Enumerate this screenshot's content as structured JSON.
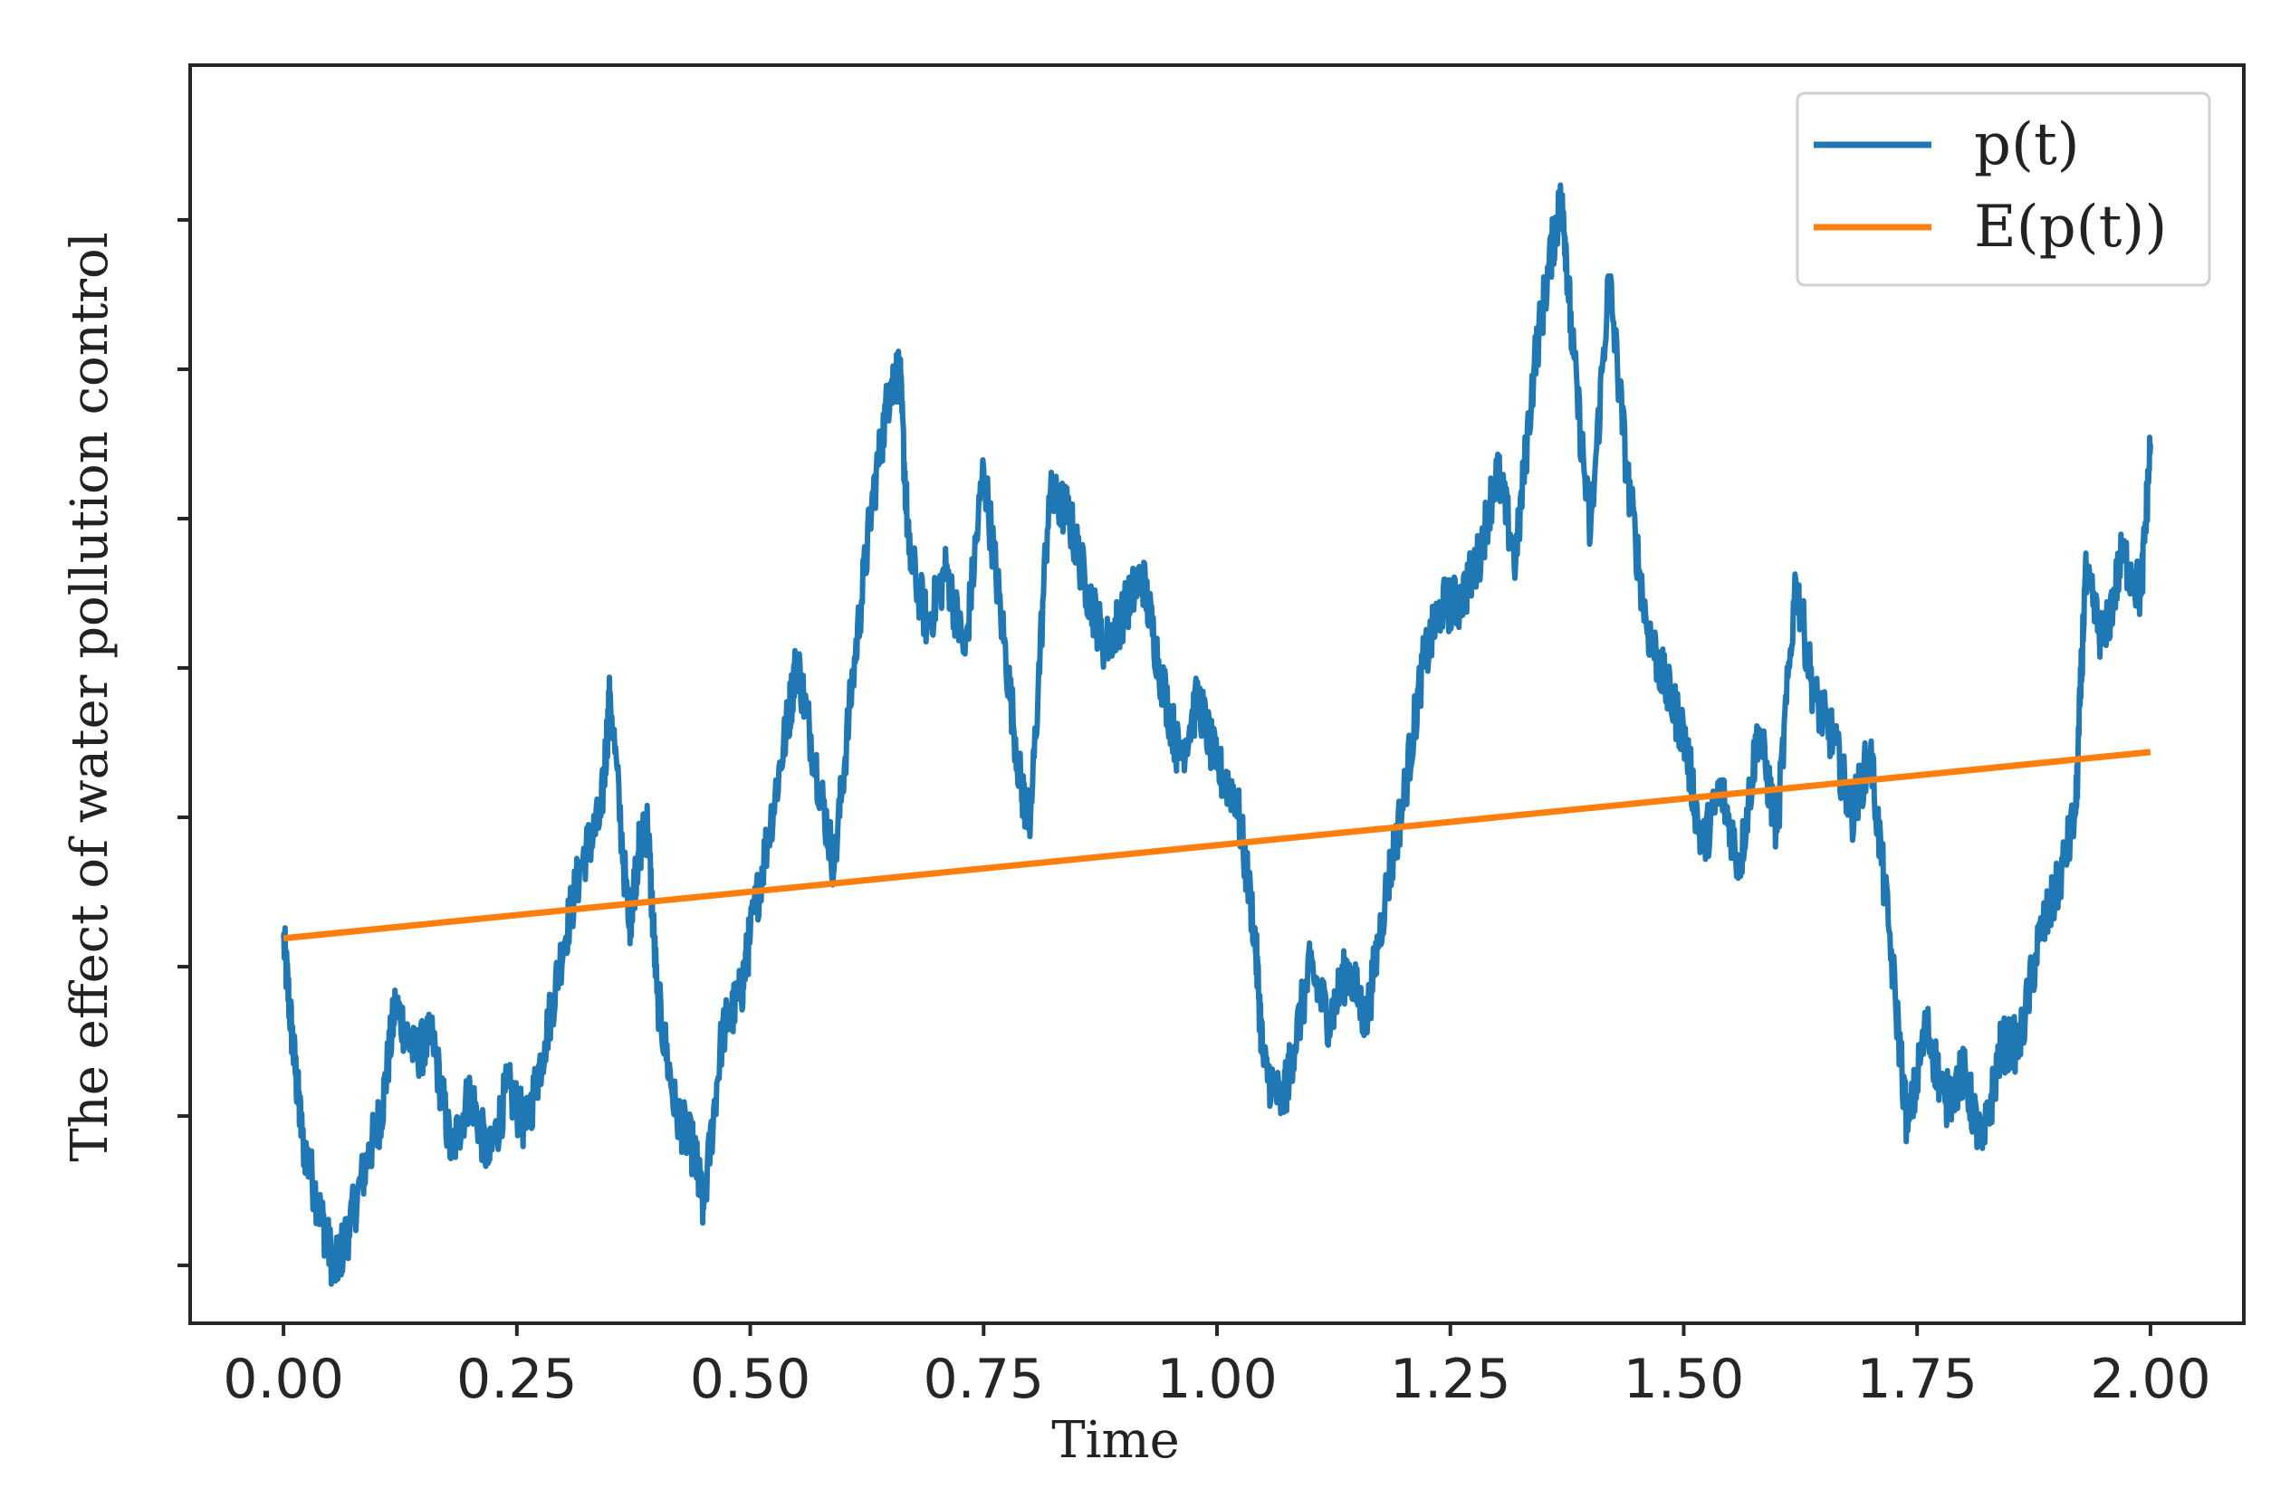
{
  "chart_data": {
    "type": "line",
    "title": "",
    "xlabel": "Time",
    "ylabel": "The effect  of water pollution control",
    "xlim": [
      -0.1,
      2.1
    ],
    "ylim": [
      0,
      1
    ],
    "x_ticks": [
      "0.00",
      "0.25",
      "0.50",
      "0.75",
      "1.00",
      "1.25",
      "1.50",
      "1.75",
      "2.00"
    ],
    "y_ticks_count": 8,
    "y_tick_labels_visible": false,
    "grid": false,
    "legend": {
      "placement": "top-right",
      "entries": [
        "p(t)",
        "E(p(t))"
      ]
    },
    "series": [
      {
        "name": "p(t)",
        "color": "#1f77b4",
        "style": "noisy-path",
        "x": [
          0.0,
          0.01,
          0.02,
          0.04,
          0.055,
          0.07,
          0.09,
          0.105,
          0.12,
          0.14,
          0.16,
          0.18,
          0.2,
          0.22,
          0.24,
          0.26,
          0.28,
          0.3,
          0.32,
          0.34,
          0.35,
          0.37,
          0.38,
          0.39,
          0.4,
          0.42,
          0.44,
          0.45,
          0.47,
          0.49,
          0.5,
          0.52,
          0.54,
          0.55,
          0.57,
          0.59,
          0.61,
          0.63,
          0.65,
          0.66,
          0.67,
          0.69,
          0.71,
          0.73,
          0.75,
          0.77,
          0.79,
          0.8,
          0.82,
          0.84,
          0.86,
          0.88,
          0.9,
          0.92,
          0.94,
          0.96,
          0.98,
          1.0,
          1.02,
          1.04,
          1.05,
          1.07,
          1.08,
          1.1,
          1.12,
          1.14,
          1.16,
          1.18,
          1.2,
          1.22,
          1.24,
          1.26,
          1.28,
          1.3,
          1.32,
          1.34,
          1.36,
          1.37,
          1.38,
          1.4,
          1.42,
          1.44,
          1.46,
          1.48,
          1.5,
          1.52,
          1.54,
          1.56,
          1.58,
          1.6,
          1.62,
          1.64,
          1.66,
          1.68,
          1.7,
          1.72,
          1.74,
          1.76,
          1.78,
          1.8,
          1.82,
          1.84,
          1.86,
          1.88,
          1.9,
          1.92,
          1.93,
          1.95,
          1.97,
          1.99,
          2.0
        ],
        "y": [
          0.306,
          0.222,
          0.148,
          0.086,
          0.042,
          0.075,
          0.131,
          0.168,
          0.254,
          0.214,
          0.226,
          0.135,
          0.185,
          0.129,
          0.188,
          0.155,
          0.223,
          0.302,
          0.368,
          0.403,
          0.501,
          0.315,
          0.374,
          0.397,
          0.263,
          0.169,
          0.136,
          0.091,
          0.231,
          0.262,
          0.308,
          0.391,
          0.478,
          0.527,
          0.445,
          0.363,
          0.514,
          0.649,
          0.747,
          0.756,
          0.612,
          0.555,
          0.599,
          0.532,
          0.68,
          0.554,
          0.427,
          0.395,
          0.657,
          0.645,
          0.586,
          0.538,
          0.565,
          0.595,
          0.515,
          0.449,
          0.497,
          0.441,
          0.421,
          0.314,
          0.205,
          0.173,
          0.211,
          0.283,
          0.241,
          0.283,
          0.24,
          0.338,
          0.417,
          0.521,
          0.57,
          0.573,
          0.607,
          0.679,
          0.606,
          0.763,
          0.86,
          0.897,
          0.783,
          0.626,
          0.832,
          0.671,
          0.556,
          0.508,
          0.469,
          0.378,
          0.425,
          0.363,
          0.473,
          0.391,
          0.591,
          0.497,
          0.465,
          0.404,
          0.454,
          0.311,
          0.153,
          0.237,
          0.176,
          0.199,
          0.139,
          0.221,
          0.222,
          0.304,
          0.345,
          0.406,
          0.592,
          0.54,
          0.612,
          0.579,
          0.699
        ]
      },
      {
        "name": "E(p(t))",
        "color": "#ff7f0e",
        "style": "straight",
        "x": [
          0.0,
          2.0
        ],
        "y": [
          0.306,
          0.454
        ]
      }
    ]
  }
}
